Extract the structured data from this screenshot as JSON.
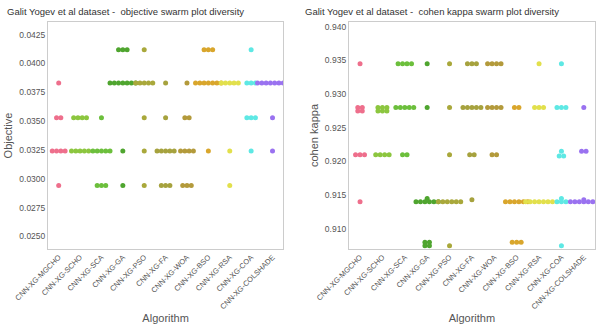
{
  "chart_data": [
    {
      "type": "scatter",
      "marker": "circle",
      "grid": false,
      "title": "Galit Yogev et al dataset -  objective swarm plot diversity",
      "x_label": "Algorithm",
      "y_label": "Objective",
      "categories": [
        "CNN-XG-MGCHO",
        "CNN-XG-SCHO",
        "CNN-XG-SCA",
        "CNN-XG-GA",
        "CNN-XG-PSO",
        "CNN-XG-FA",
        "CNN-XG-WOA",
        "CNN-XG-BSO",
        "CNN-XG-RSA",
        "CNN-XG-COA",
        "CNN-XG-COLSHADE"
      ],
      "colors": [
        "#ee6f8c",
        "#8cc63f",
        "#6cbf3c",
        "#4fa52f",
        "#a9a83b",
        "#a6a23e",
        "#b39a3b",
        "#d9a62c",
        "#e2e04c",
        "#5ee8e4",
        "#9a72f0"
      ],
      "values": [
        [
          0.0383,
          0.0353,
          0.0353,
          0.0324,
          0.0324,
          0.0324,
          0.0324,
          0.0294
        ],
        [
          0.0353,
          0.0353,
          0.0353,
          0.0353,
          0.0324,
          0.0324,
          0.0324,
          0.0324,
          0.0324
        ],
        [
          0.0353,
          0.0324,
          0.0324,
          0.0324,
          0.0324,
          0.0324,
          0.0294,
          0.0294,
          0.0294
        ],
        [
          0.0412,
          0.0412,
          0.0412,
          0.0383,
          0.0383,
          0.0383,
          0.0383,
          0.0383,
          0.0383,
          0.0383,
          0.0324,
          0.0294
        ],
        [
          0.0412,
          0.0383,
          0.0383,
          0.0383,
          0.0383,
          0.0383,
          0.0353,
          0.0324,
          0.0294
        ],
        [
          0.0383,
          0.0353,
          0.0324,
          0.0324,
          0.0324,
          0.0324,
          0.0324,
          0.0294,
          0.0294,
          0.0294
        ],
        [
          0.0383,
          0.0353,
          0.0353,
          0.0324,
          0.0324,
          0.0324,
          0.0324,
          0.0294,
          0.0294,
          0.0294
        ],
        [
          0.0412,
          0.0412,
          0.0412,
          0.0383,
          0.0383,
          0.0383,
          0.0383,
          0.0383,
          0.0383,
          0.0383,
          0.0324
        ],
        [
          0.0383,
          0.0383,
          0.0383,
          0.0383,
          0.0383,
          0.0324,
          0.0294
        ],
        [
          0.0412,
          0.0383,
          0.0383,
          0.0383,
          0.0353,
          0.0353,
          0.0353,
          0.0324
        ],
        [
          0.0383,
          0.0383,
          0.0383,
          0.0383,
          0.0383,
          0.0383,
          0.0383,
          0.0383,
          0.0353,
          0.0324
        ]
      ],
      "ylim": [
        0.0239,
        0.0436
      ],
      "yticks": [
        {
          "value": 0.025,
          "label": "0.0250"
        },
        0.0275,
        {
          "value": 0.03,
          "label": "0.0300"
        },
        0.0325,
        {
          "value": 0.035,
          "label": "0.0350"
        },
        0.0375,
        {
          "value": 0.04,
          "label": "0.0400"
        },
        0.0425
      ]
    },
    {
      "type": "scatter",
      "marker": "circle",
      "grid": false,
      "title": "Galit Yogev et al dataset -  cohen kappa swarm plot diversity",
      "x_label": "Algorithm",
      "y_label": "cohen kappa",
      "categories": [
        "CNN-XG-MGCHO",
        "CNN-XG-SCHO",
        "CNN-XG-SCA",
        "CNN-XG-GA",
        "CNN-XG-PSO",
        "CNN-XG-FA",
        "CNN-XG-WOA",
        "CNN-XG-BSO",
        "CNN-XG-RSA",
        "CNN-XG-COA",
        "CNN-XG-COLSHADE"
      ],
      "colors": [
        "#ee6f8c",
        "#8cc63f",
        "#6cbf3c",
        "#4fa52f",
        "#a9a83b",
        "#a6a23e",
        "#b39a3b",
        "#d9a62c",
        "#e2e04c",
        "#5ee8e4",
        "#9a72f0"
      ],
      "values": [
        [
          0.9345,
          0.928,
          0.928,
          0.9275,
          0.9275,
          0.921,
          0.921,
          0.921,
          0.914
        ],
        [
          0.928,
          0.928,
          0.928,
          0.9275,
          0.9275,
          0.9275,
          0.921,
          0.921,
          0.921,
          0.921
        ],
        [
          0.9345,
          0.9345,
          0.9345,
          0.9345,
          0.928,
          0.928,
          0.928,
          0.928,
          0.928,
          0.921,
          0.921
        ],
        [
          0.9345,
          0.928,
          0.9145,
          0.914,
          0.914,
          0.914,
          0.914,
          0.914,
          0.914,
          0.908,
          0.908,
          0.9075,
          0.9075
        ],
        [
          0.9345,
          0.928,
          0.921,
          0.914,
          0.914,
          0.914,
          0.914,
          0.914,
          0.914,
          0.9075
        ],
        [
          0.9345,
          0.9345,
          0.9345,
          0.928,
          0.928,
          0.928,
          0.928,
          0.928,
          0.921,
          0.921,
          0.9143
        ],
        [
          0.9345,
          0.9345,
          0.9345,
          0.9345,
          0.928,
          0.928,
          0.928,
          0.928,
          0.921,
          0.921
        ],
        [
          0.928,
          0.928,
          0.914,
          0.914,
          0.914,
          0.914,
          0.914,
          0.914,
          0.908,
          0.908,
          0.908
        ],
        [
          0.9345,
          0.928,
          0.928,
          0.928,
          0.914,
          0.914,
          0.914,
          0.914,
          0.914,
          0.914,
          0.914
        ],
        [
          0.9345,
          0.928,
          0.928,
          0.928,
          0.9215,
          0.9208,
          0.9208,
          0.9145,
          0.914,
          0.914,
          0.914,
          0.9075
        ],
        [
          0.928,
          0.9215,
          0.9215,
          0.9143,
          0.914,
          0.914,
          0.914,
          0.914,
          0.914,
          0.914,
          0.914
        ]
      ],
      "ylim": [
        0.907,
        0.9407
      ],
      "yticks": [
        {
          "value": 0.91,
          "label": "0.910"
        },
        0.915,
        {
          "value": 0.92,
          "label": "0.920"
        },
        0.925,
        {
          "value": 0.93,
          "label": "0.930"
        },
        0.935,
        {
          "value": 0.94,
          "label": "0.940"
        }
      ]
    }
  ]
}
